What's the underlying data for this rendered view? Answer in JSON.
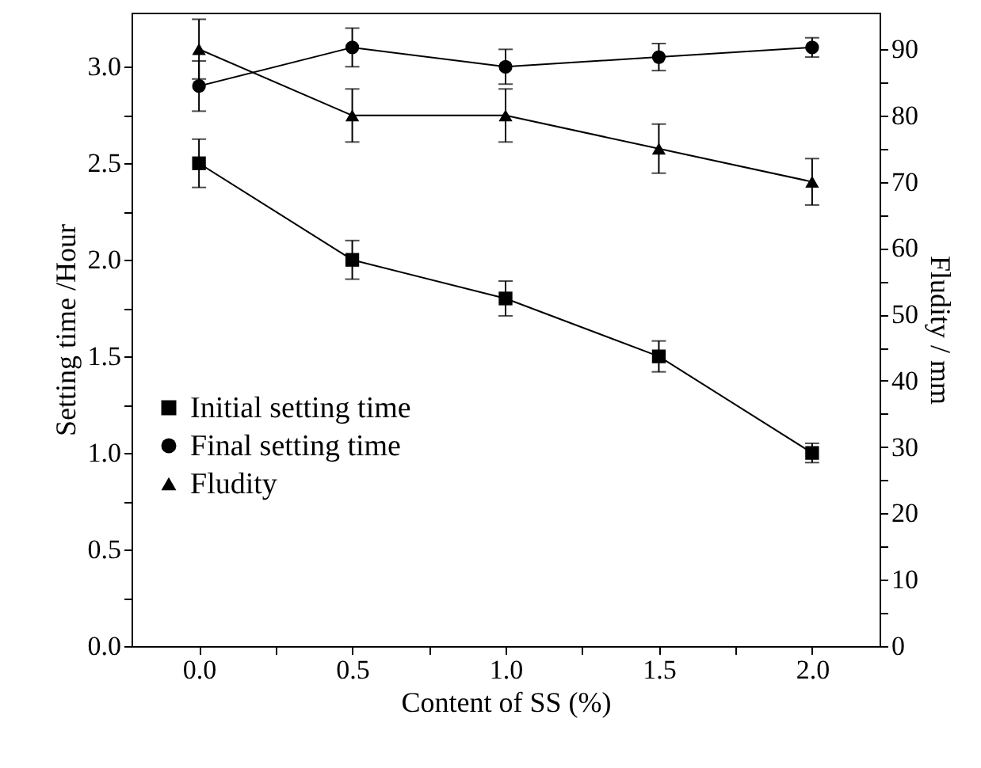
{
  "chart_data": {
    "type": "line",
    "xlabel": "Content of SS (%)",
    "ylabel": "Setting time /Hour",
    "y2label": "Fludity / mm",
    "x": [
      0,
      0.5,
      1,
      1.5,
      2
    ],
    "xlim": [
      -0.22,
      2.22
    ],
    "xticks": [
      {
        "value": 0,
        "label": "0.0"
      },
      {
        "value": 0.25,
        "label": null
      },
      {
        "value": 0.5,
        "label": "0.5"
      },
      {
        "value": 0.75,
        "label": null
      },
      {
        "value": 1,
        "label": "1.0"
      },
      {
        "value": 1.25,
        "label": null
      },
      {
        "value": 1.5,
        "label": "1.5"
      },
      {
        "value": 1.75,
        "label": null
      },
      {
        "value": 2,
        "label": "2.0"
      }
    ],
    "ylim": [
      0,
      3.28
    ],
    "yticks": [
      {
        "value": 0,
        "label": "0.0"
      },
      {
        "value": 0.25,
        "label": null
      },
      {
        "value": 0.5,
        "label": "0.5"
      },
      {
        "value": 0.75,
        "label": null
      },
      {
        "value": 1,
        "label": "1.0"
      },
      {
        "value": 1.25,
        "label": null
      },
      {
        "value": 1.5,
        "label": "1.5"
      },
      {
        "value": 1.75,
        "label": null
      },
      {
        "value": 2,
        "label": "2.0"
      },
      {
        "value": 2.25,
        "label": null
      },
      {
        "value": 2.5,
        "label": "2.5"
      },
      {
        "value": 2.75,
        "label": null
      },
      {
        "value": 3,
        "label": "3.0"
      }
    ],
    "y2lim": [
      0,
      95.5
    ],
    "y2ticks": [
      0,
      {
        "value": 5,
        "label": null
      },
      10,
      {
        "value": 15,
        "label": null
      },
      20,
      {
        "value": 25,
        "label": null
      },
      30,
      {
        "value": 35,
        "label": null
      },
      40,
      {
        "value": 45,
        "label": null
      },
      50,
      {
        "value": 55,
        "label": null
      },
      60,
      {
        "value": 65,
        "label": null
      },
      70,
      {
        "value": 75,
        "label": null
      },
      80,
      {
        "value": 85,
        "label": null
      },
      90
    ],
    "legend": "left",
    "line_style": "solid",
    "series": [
      {
        "name": "Initial setting time",
        "color": "#000000",
        "marker": "square",
        "values": [
          2.5,
          2.0,
          1.8,
          1.5,
          1.0
        ],
        "errors": [
          0.125,
          0.1,
          0.09,
          0.08,
          0.05
        ]
      },
      {
        "name": "Final setting time",
        "color": "#000000",
        "marker": "circle",
        "values": [
          2.9,
          3.1,
          3.0,
          3.05,
          3.1
        ],
        "errors": [
          0.13,
          0.1,
          0.09,
          0.07,
          0.05
        ]
      },
      {
        "name": "Fludity",
        "color": "#000000",
        "marker": "triangle",
        "axis": "y2",
        "values": [
          90,
          80,
          80,
          75,
          70
        ],
        "errors": [
          4.5,
          4,
          4,
          3.7,
          3.5
        ]
      }
    ]
  }
}
